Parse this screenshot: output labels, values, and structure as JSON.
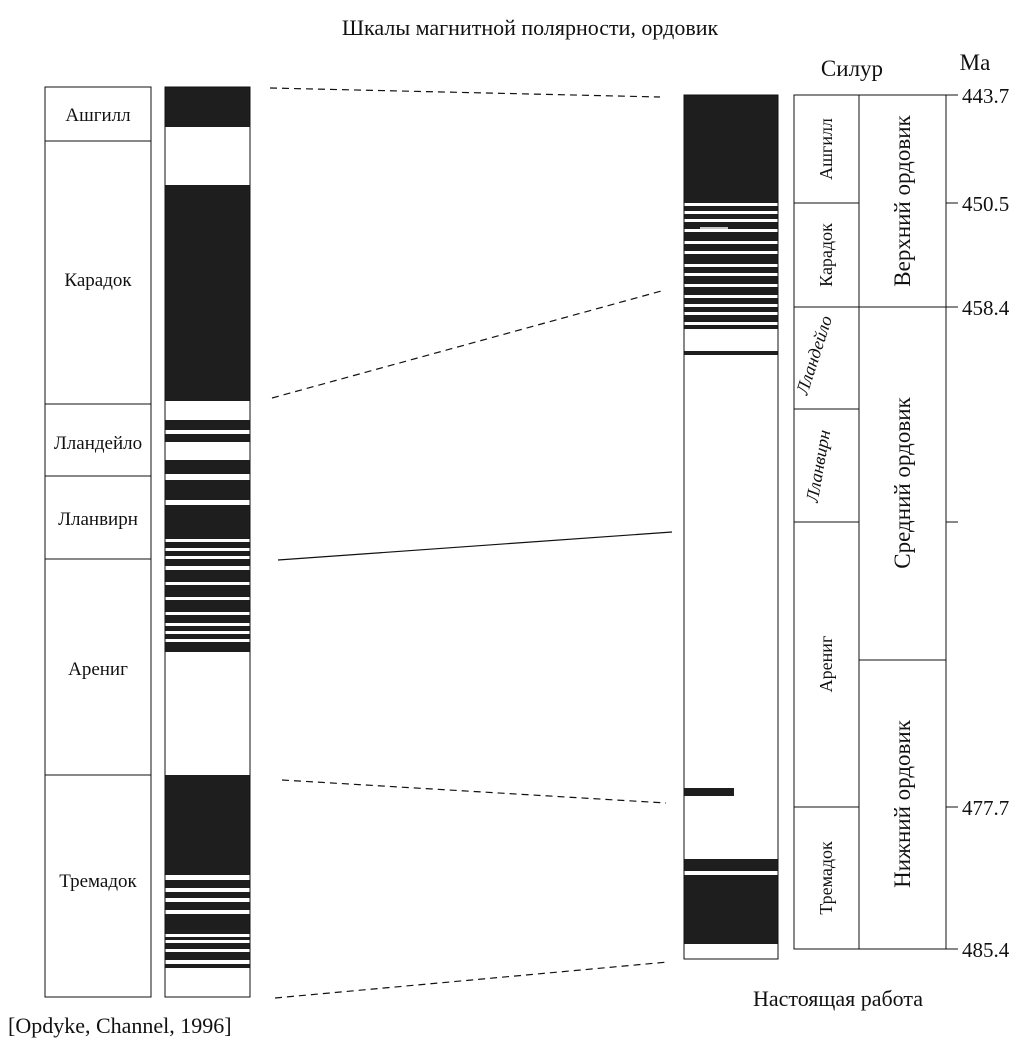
{
  "title": "Шкалы магнитной полярности, ордовик",
  "left_scale": {
    "source": "[Opdyke, Channel, 1996]",
    "stages": [
      "Ашгилл",
      "Карадок",
      "Лландейло",
      "Лланвирн",
      "Арениг",
      "Тремадок"
    ]
  },
  "right_scale": {
    "caption": "Настоящая работа",
    "overlying": "Силур",
    "age_unit": "Ma",
    "stages": [
      "Ашгилл",
      "Карадок",
      "Лландейло",
      "Лланвирн",
      "Арениг",
      "Тремадок"
    ],
    "series": [
      "Верхний ордовик",
      "Средний ордовик",
      "Нижний ордовик"
    ],
    "age_ticks": [
      "443.7",
      "450.5",
      "458.4",
      "477.7",
      "485.4"
    ]
  },
  "colors": {
    "normal_polarity": "#1e1e1e",
    "reversed_polarity": "#ffffff",
    "line": "#111111"
  }
}
